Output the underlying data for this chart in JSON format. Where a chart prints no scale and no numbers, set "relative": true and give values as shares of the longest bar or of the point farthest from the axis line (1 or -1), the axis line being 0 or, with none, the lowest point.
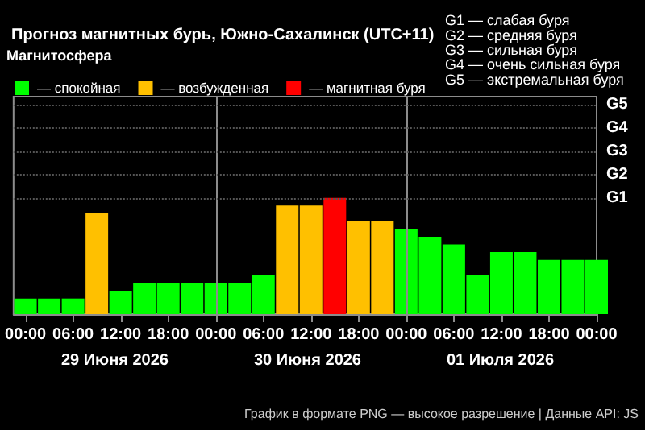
{
  "chart_data": {
    "type": "bar",
    "relative": true,
    "title": "Прогноз магнитных бурь, Южно-Сахалинск (UTC+11)",
    "legend_title": "Магнитосфера",
    "legend": "top left",
    "x": [
      "2026-06-29T00:00",
      "2026-06-29T03:00",
      "2026-06-29T06:00",
      "2026-06-29T09:00",
      "2026-06-29T12:00",
      "2026-06-29T15:00",
      "2026-06-29T18:00",
      "2026-06-29T21:00",
      "2026-06-30T00:00",
      "2026-06-30T03:00",
      "2026-06-30T06:00",
      "2026-06-30T09:00",
      "2026-06-30T12:00",
      "2026-06-30T15:00",
      "2026-06-30T18:00",
      "2026-06-30T21:00",
      "2026-07-01T00:00",
      "2026-07-01T03:00",
      "2026-07-01T06:00",
      "2026-07-01T09:00",
      "2026-07-01T12:00",
      "2026-07-01T15:00",
      "2026-07-01T18:00",
      "2026-07-01T21:00",
      "2026-07-02T00:00"
    ],
    "series": [
      {
        "name": "— спокойная",
        "color": "#00ff00",
        "values": [
          0.134,
          0.134,
          0.134,
          null,
          0.2,
          0.266,
          0.266,
          0.266,
          0.266,
          0.266,
          0.334,
          null,
          null,
          null,
          null,
          null,
          0.734,
          0.666,
          0.6,
          0.334,
          0.534,
          0.534,
          0.466,
          0.466,
          0.466
        ]
      },
      {
        "name": "— возбужденная",
        "color": "#ffc000",
        "values": [
          null,
          null,
          null,
          0.866,
          null,
          null,
          null,
          null,
          null,
          null,
          null,
          0.934,
          0.934,
          null,
          0.8,
          0.8,
          null,
          null,
          null,
          null,
          null,
          null,
          null,
          null,
          null
        ]
      },
      {
        "name": "— магнитная буря",
        "color": "#ff0000",
        "values": [
          null,
          null,
          null,
          null,
          null,
          null,
          null,
          null,
          null,
          null,
          null,
          null,
          null,
          1,
          null,
          null,
          null,
          null,
          null,
          null,
          null,
          null,
          null,
          null,
          null
        ]
      }
    ],
    "xlim": [
      "2026-06-28T22:30",
      "2026-07-02T00:00"
    ],
    "xticks": [
      {
        "value": "2026-06-29T00:00",
        "label": "00:00"
      },
      {
        "value": "2026-06-29T06:00",
        "label": "06:00"
      },
      {
        "value": "2026-06-29T12:00",
        "label": "12:00"
      },
      {
        "value": "2026-06-29T18:00",
        "label": "18:00"
      },
      {
        "value": "2026-06-30T00:00",
        "label": "00:00"
      },
      {
        "value": "2026-06-30T06:00",
        "label": "06:00"
      },
      {
        "value": "2026-06-30T12:00",
        "label": "12:00"
      },
      {
        "value": "2026-06-30T18:00",
        "label": "18:00"
      },
      {
        "value": "2026-07-01T00:00",
        "label": "00:00"
      },
      {
        "value": "2026-07-01T06:00",
        "label": "06:00"
      },
      {
        "value": "2026-07-01T12:00",
        "label": "12:00"
      },
      {
        "value": "2026-07-01T18:00",
        "label": "18:00"
      },
      {
        "value": "2026-07-02T00:00",
        "label": "00:00"
      }
    ],
    "ref_lines": [
      {
        "axis": "x",
        "value": "2026-06-30T00:00",
        "label": null,
        "color": "#8c8c8c"
      },
      {
        "axis": "x",
        "value": "2026-07-01T00:00",
        "label": null,
        "color": "#8c8c8c"
      },
      {
        "axis": "y",
        "value": 1,
        "label": "G1",
        "color": "#555555",
        "line_style": "dotted"
      },
      {
        "axis": "y",
        "value": 1.2,
        "label": "G2",
        "color": "#555555",
        "line_style": "dotted"
      },
      {
        "axis": "y",
        "value": 1.4,
        "label": "G3",
        "color": "#555555",
        "line_style": "dotted"
      },
      {
        "axis": "y",
        "value": 1.6,
        "label": "G4",
        "color": "#555555",
        "line_style": "dotted"
      },
      {
        "axis": "y",
        "value": 1.8,
        "label": "G5",
        "color": "#555555",
        "line_style": "dotted"
      }
    ],
    "annotations": [
      "G1 — слабая буря\nG2 — средняя буря\nG3 — сильная буря\nG4 — очень сильная буря\nG5 — экстремальная буря",
      "29 Июня 2026",
      "30 Июня 2026",
      "01 Июля 2026",
      "График в формате PNG — высокое разрешение | Данные API: JS"
    ]
  }
}
